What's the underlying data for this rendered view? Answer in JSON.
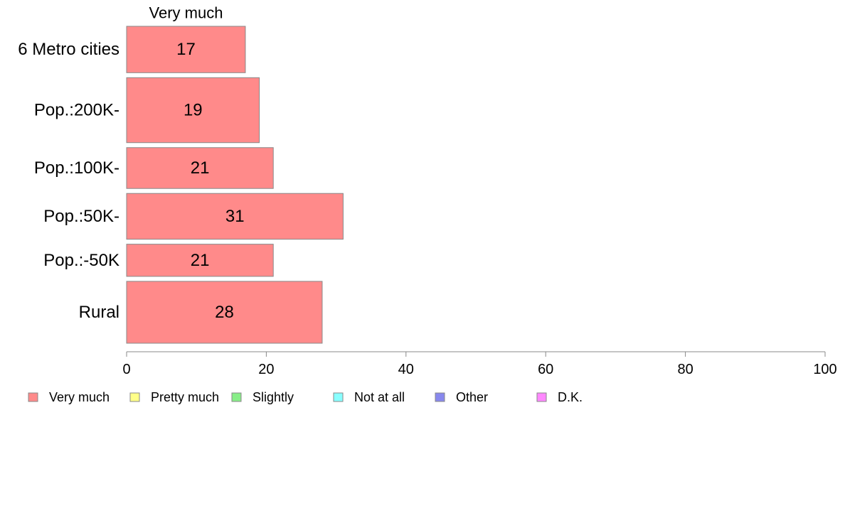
{
  "chart_data": {
    "type": "bar",
    "orientation": "horizontal",
    "stacked": true,
    "title": "",
    "xlabel": "",
    "ylabel": "",
    "xlim": [
      0,
      100
    ],
    "x_ticks": [
      0,
      20,
      40,
      60,
      80,
      100
    ],
    "grid": false,
    "legend_position": "bottom-left",
    "categories": [
      "6 Metro cities",
      "Pop.:200K-",
      "Pop.:100K-",
      "Pop.:50K-",
      "Pop.:-50K",
      "Rural"
    ],
    "category_weights": [
      0.75,
      1.05,
      0.66,
      0.74,
      0.52,
      1.0
    ],
    "series": [
      {
        "name": "Very much",
        "color": "#ff8a8a",
        "values": [
          17,
          19,
          21,
          31,
          21,
          28
        ]
      },
      {
        "name": "Pretty much",
        "color": "#ffff88",
        "values": [
          null,
          null,
          null,
          null,
          null,
          null
        ]
      },
      {
        "name": "Slightly",
        "color": "#88ee88",
        "values": [
          null,
          null,
          null,
          null,
          null,
          null
        ]
      },
      {
        "name": "Not at all",
        "color": "#88ffff",
        "values": [
          null,
          null,
          null,
          null,
          null,
          null
        ]
      },
      {
        "name": "Other",
        "color": "#8888ee",
        "values": [
          null,
          null,
          null,
          null,
          null,
          null
        ]
      },
      {
        "name": "D.K.",
        "color": "#ff88ff",
        "values": [
          null,
          null,
          null,
          null,
          null,
          null
        ]
      }
    ],
    "visible_series_label": "Very much",
    "bar_outline_color": "#888888",
    "axis_color": "#888888"
  }
}
